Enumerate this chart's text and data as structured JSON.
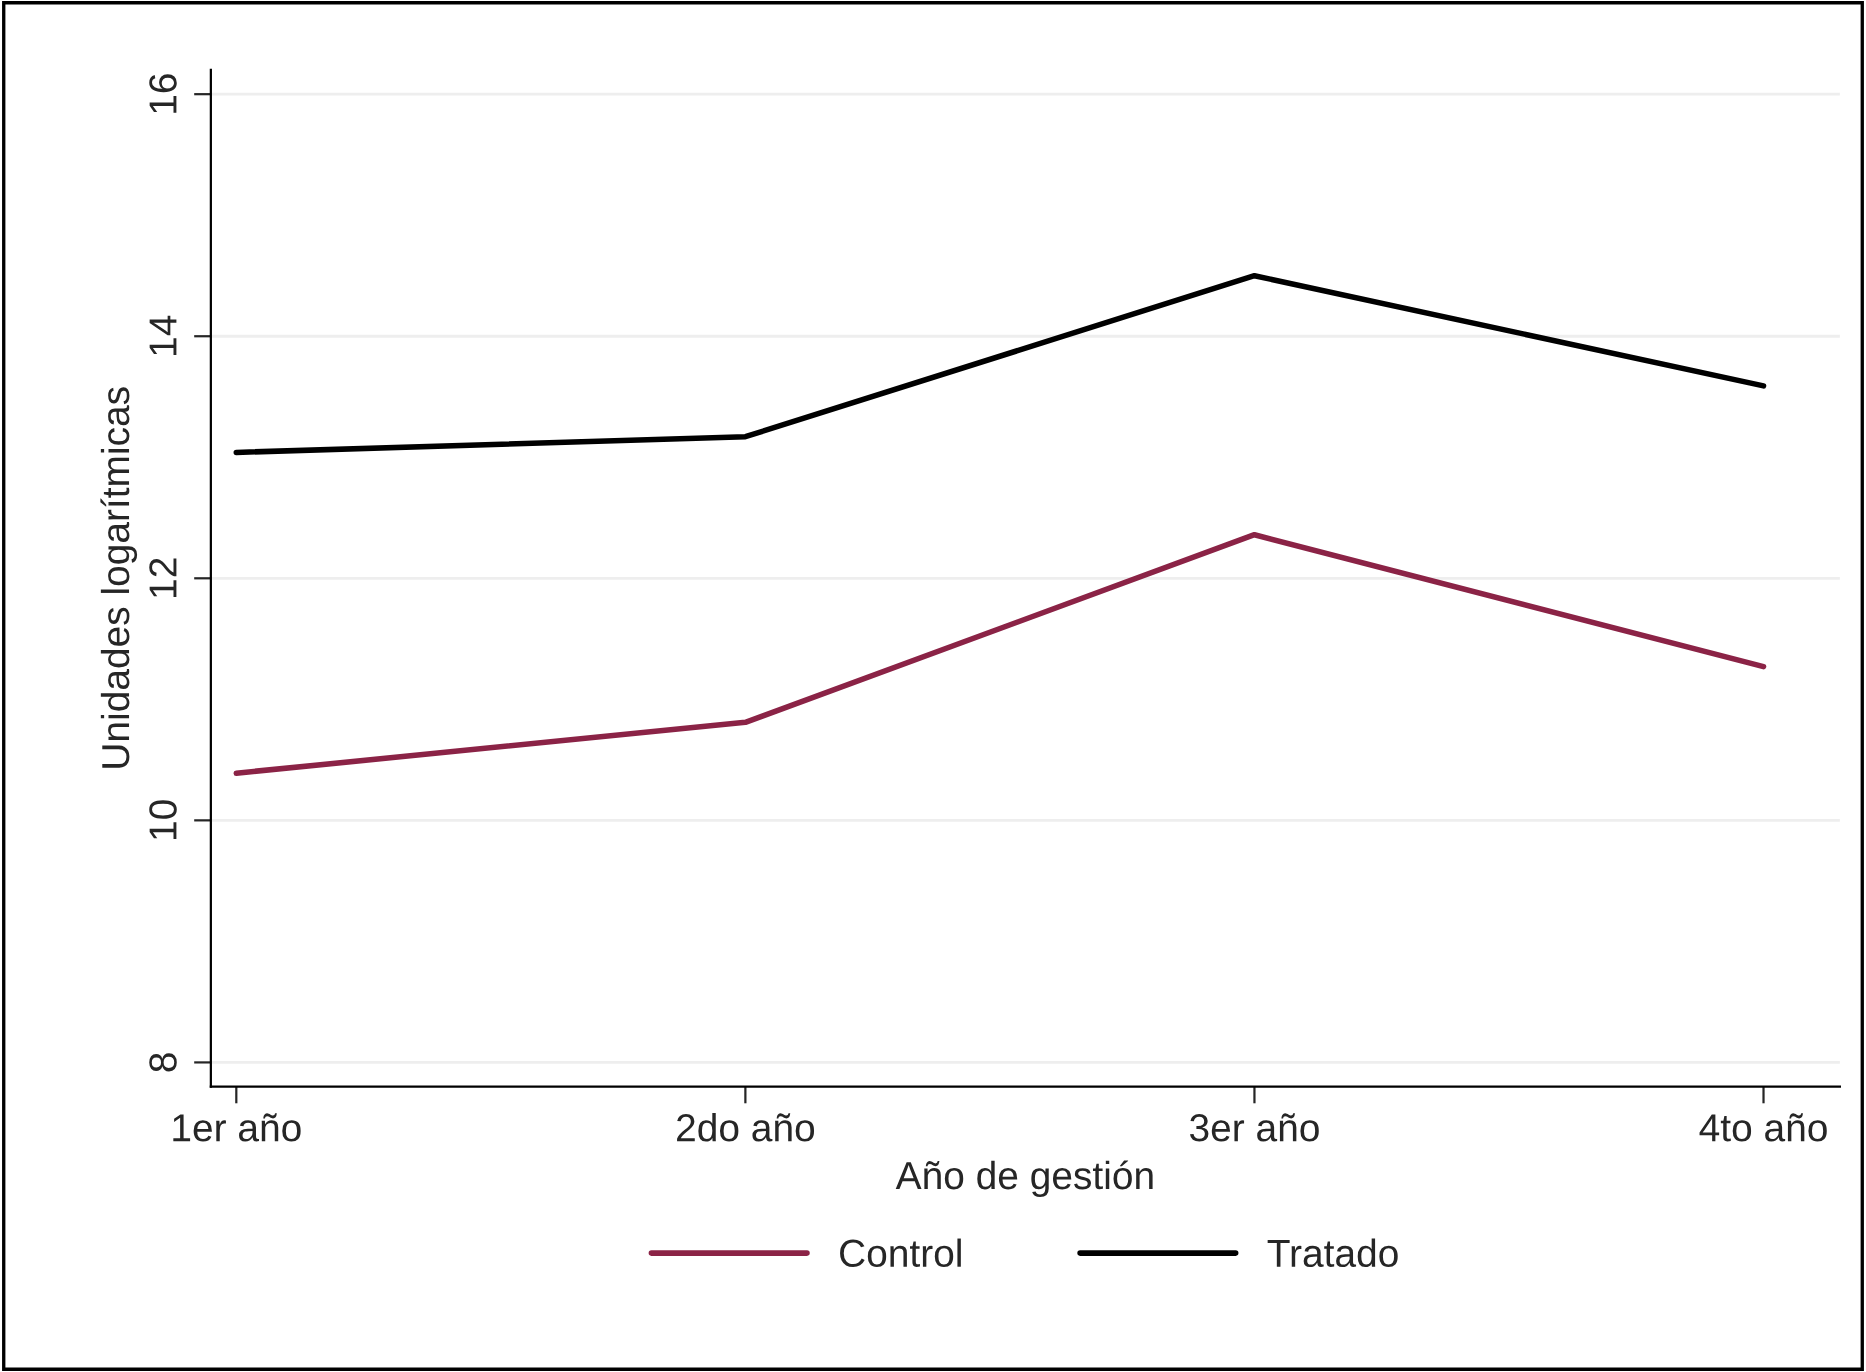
{
  "chart_data": {
    "type": "line",
    "xlabel": "Año de gestión",
    "ylabel": "Unidades logarítmicas",
    "categories": [
      "1er año",
      "2do año",
      "3er año",
      "4to año"
    ],
    "series": [
      {
        "name": "Control",
        "color": "#8b2346",
        "values": [
          10.39,
          10.81,
          12.36,
          11.27
        ]
      },
      {
        "name": "Tratado",
        "color": "#000000",
        "values": [
          13.04,
          13.17,
          14.5,
          13.59
        ]
      }
    ],
    "ylim": [
      7.8,
      16.2
    ],
    "yticks": [
      8,
      10,
      12,
      14,
      16
    ],
    "grid": "y",
    "legend": "bottom",
    "marker": "none",
    "line_style": "solid"
  }
}
